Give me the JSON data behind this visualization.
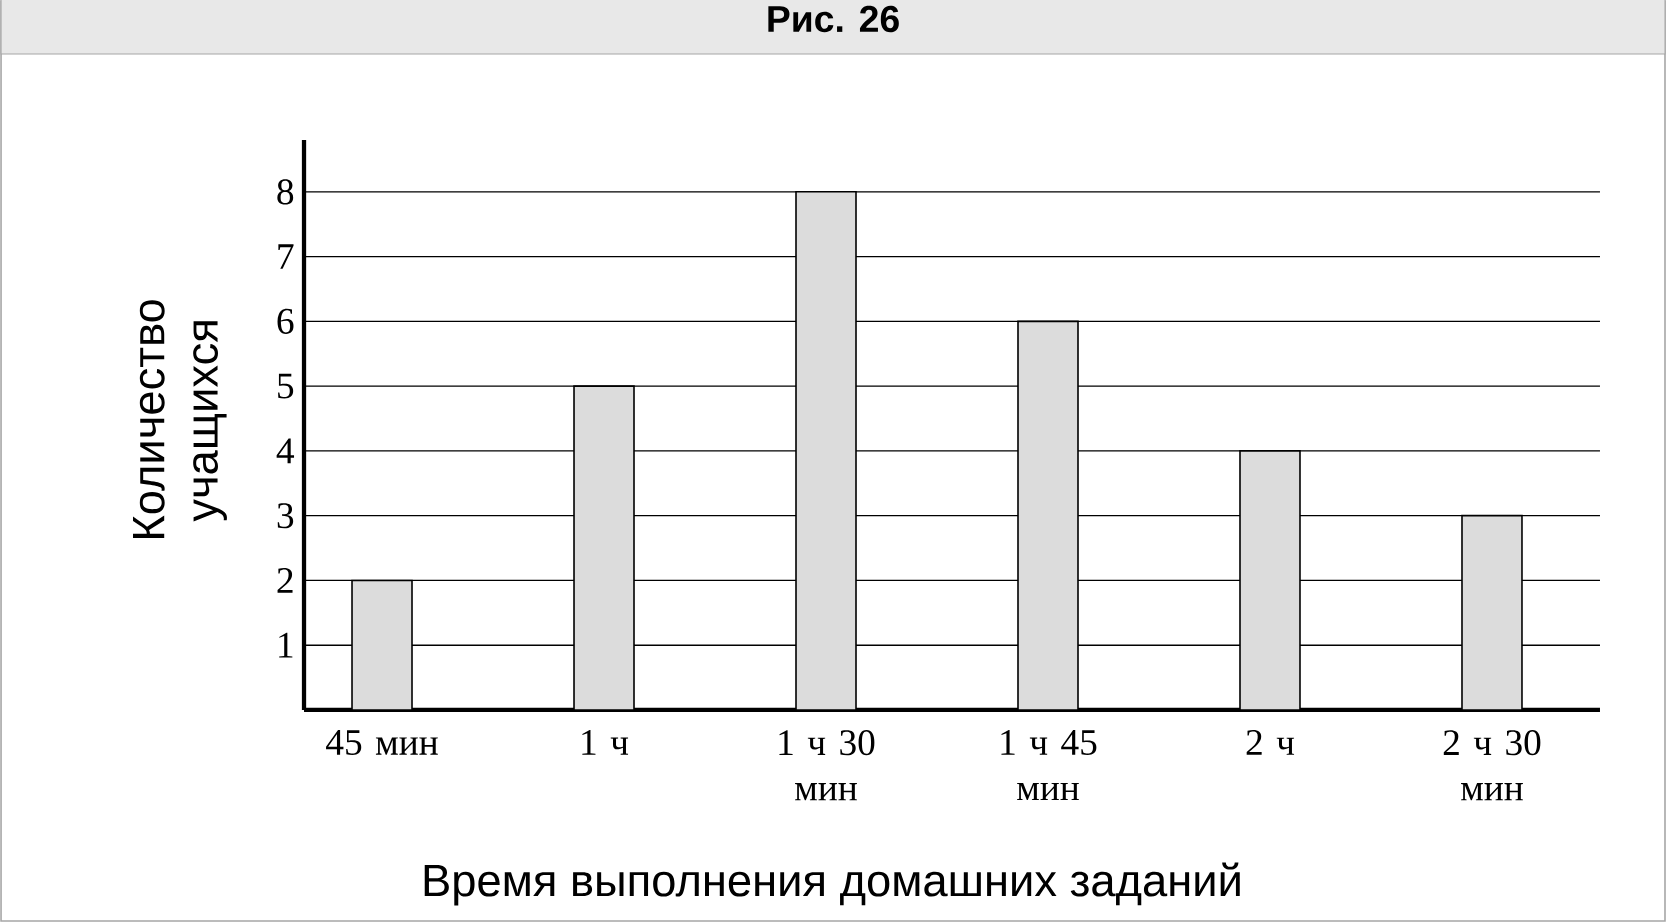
{
  "chart_data": {
    "type": "bar",
    "title": "Рис. 26",
    "xlabel": "Время выполнения домашних заданий",
    "ylabel": "Количество учащихся",
    "categories": [
      "45 мин",
      "1 ч",
      "1 ч 30 мин",
      "1 ч 45 мин",
      "2 ч",
      "2 ч 30 мин"
    ],
    "values": [
      2,
      5,
      8,
      6,
      4,
      3
    ],
    "color": "#dcdcdc",
    "ylim": [
      0,
      8.8
    ],
    "yticks": [
      1,
      2,
      3,
      4,
      5,
      6,
      7,
      8
    ],
    "grid": "y"
  }
}
